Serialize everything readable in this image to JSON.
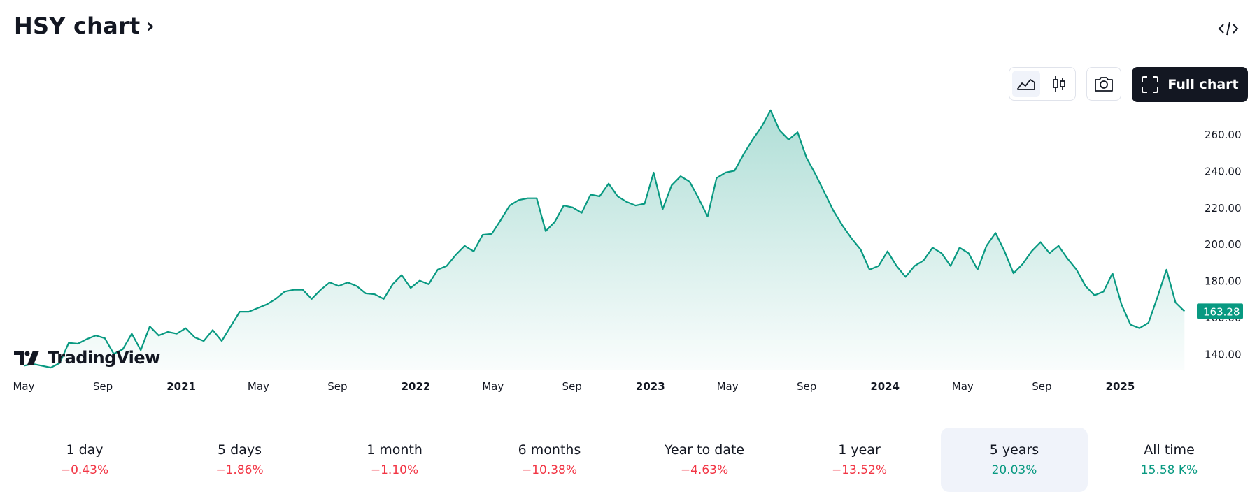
{
  "header": {
    "title": "HSY chart",
    "chevron": "›",
    "embed_icon": "code-icon"
  },
  "toolbar": {
    "line_icon": "area-chart-icon",
    "candles_icon": "candlestick-icon",
    "camera_icon": "camera-icon",
    "full_chart_label": "Full chart",
    "full_chart_icon": "fullscreen-icon"
  },
  "logo": {
    "text": "TradingView"
  },
  "colors": {
    "line": "#089981",
    "negative": "#f23645",
    "positive": "#089981",
    "price_tag": "#089981"
  },
  "chart_data": {
    "type": "area",
    "ticker": "HSY",
    "last_price": 163.28,
    "last_price_label": "163.28",
    "ylim": [
      131,
      276
    ],
    "yticks": [
      {
        "value": 140,
        "label": "140.00"
      },
      {
        "value": 160,
        "label": "160.00"
      },
      {
        "value": 180,
        "label": "180.00"
      },
      {
        "value": 200,
        "label": "200.00"
      },
      {
        "value": 220,
        "label": "220.00"
      },
      {
        "value": 240,
        "label": "240.00"
      },
      {
        "value": 260,
        "label": "260.00"
      }
    ],
    "xlim": [
      "2020-05-01",
      "2025-04-15"
    ],
    "xticks": [
      {
        "date": "2020-05-01",
        "label": "May",
        "bold": false
      },
      {
        "date": "2020-09-01",
        "label": "Sep",
        "bold": false
      },
      {
        "date": "2021-01-01",
        "label": "2021",
        "bold": true
      },
      {
        "date": "2021-05-01",
        "label": "May",
        "bold": false
      },
      {
        "date": "2021-09-01",
        "label": "Sep",
        "bold": false
      },
      {
        "date": "2022-01-01",
        "label": "2022",
        "bold": true
      },
      {
        "date": "2022-05-01",
        "label": "May",
        "bold": false
      },
      {
        "date": "2022-09-01",
        "label": "Sep",
        "bold": false
      },
      {
        "date": "2023-01-01",
        "label": "2023",
        "bold": true
      },
      {
        "date": "2023-05-01",
        "label": "May",
        "bold": false
      },
      {
        "date": "2023-09-01",
        "label": "Sep",
        "bold": false
      },
      {
        "date": "2024-01-01",
        "label": "2024",
        "bold": true
      },
      {
        "date": "2024-05-01",
        "label": "May",
        "bold": false
      },
      {
        "date": "2024-09-01",
        "label": "Sep",
        "bold": false
      },
      {
        "date": "2025-01-01",
        "label": "2025",
        "bold": true
      }
    ],
    "series": [
      {
        "points": [
          [
            "2020-05-01",
            133.5
          ],
          [
            "2020-05-15",
            134.5
          ],
          [
            "2020-05-29",
            133.5
          ],
          [
            "2020-06-12",
            132.5
          ],
          [
            "2020-06-26",
            135
          ],
          [
            "2020-07-10",
            146
          ],
          [
            "2020-07-24",
            145.5
          ],
          [
            "2020-08-07",
            148
          ],
          [
            "2020-08-21",
            150
          ],
          [
            "2020-09-04",
            148.5
          ],
          [
            "2020-09-18",
            140
          ],
          [
            "2020-10-02",
            142.5
          ],
          [
            "2020-10-16",
            151
          ],
          [
            "2020-10-30",
            142
          ],
          [
            "2020-11-13",
            155
          ],
          [
            "2020-11-27",
            150
          ],
          [
            "2020-12-11",
            152
          ],
          [
            "2020-12-25",
            151
          ],
          [
            "2021-01-08",
            154
          ],
          [
            "2021-01-22",
            149
          ],
          [
            "2021-02-05",
            147
          ],
          [
            "2021-02-19",
            153
          ],
          [
            "2021-03-05",
            147
          ],
          [
            "2021-03-19",
            155
          ],
          [
            "2021-04-02",
            163
          ],
          [
            "2021-04-16",
            163
          ],
          [
            "2021-04-30",
            165
          ],
          [
            "2021-05-14",
            167
          ],
          [
            "2021-05-28",
            170
          ],
          [
            "2021-06-11",
            174
          ],
          [
            "2021-06-25",
            175
          ],
          [
            "2021-07-09",
            175
          ],
          [
            "2021-07-23",
            170
          ],
          [
            "2021-08-06",
            175
          ],
          [
            "2021-08-20",
            179
          ],
          [
            "2021-09-03",
            177
          ],
          [
            "2021-09-17",
            179
          ],
          [
            "2021-10-01",
            177
          ],
          [
            "2021-10-15",
            173
          ],
          [
            "2021-10-29",
            172.5
          ],
          [
            "2021-11-12",
            170
          ],
          [
            "2021-11-26",
            178
          ],
          [
            "2021-12-10",
            183
          ],
          [
            "2021-12-24",
            176
          ],
          [
            "2022-01-07",
            180
          ],
          [
            "2022-01-21",
            178
          ],
          [
            "2022-02-04",
            186
          ],
          [
            "2022-02-18",
            188
          ],
          [
            "2022-03-04",
            194
          ],
          [
            "2022-03-18",
            199
          ],
          [
            "2022-04-01",
            196
          ],
          [
            "2022-04-15",
            205
          ],
          [
            "2022-04-29",
            205.5
          ],
          [
            "2022-05-13",
            213
          ],
          [
            "2022-05-27",
            221
          ],
          [
            "2022-06-10",
            224
          ],
          [
            "2022-06-24",
            225
          ],
          [
            "2022-07-08",
            225
          ],
          [
            "2022-07-22",
            207
          ],
          [
            "2022-08-05",
            212
          ],
          [
            "2022-08-19",
            221
          ],
          [
            "2022-09-02",
            220
          ],
          [
            "2022-09-16",
            217
          ],
          [
            "2022-09-30",
            227
          ],
          [
            "2022-10-14",
            226
          ],
          [
            "2022-10-28",
            233
          ],
          [
            "2022-11-11",
            226
          ],
          [
            "2022-11-25",
            223
          ],
          [
            "2022-12-09",
            221
          ],
          [
            "2022-12-23",
            222
          ],
          [
            "2023-01-06",
            239
          ],
          [
            "2023-01-20",
            219
          ],
          [
            "2023-02-03",
            232
          ],
          [
            "2023-02-17",
            237
          ],
          [
            "2023-03-03",
            234
          ],
          [
            "2023-03-17",
            225
          ],
          [
            "2023-03-31",
            215
          ],
          [
            "2023-04-14",
            236
          ],
          [
            "2023-04-28",
            239
          ],
          [
            "2023-05-12",
            240
          ],
          [
            "2023-05-26",
            249
          ],
          [
            "2023-06-09",
            257
          ],
          [
            "2023-06-23",
            264
          ],
          [
            "2023-07-07",
            273
          ],
          [
            "2023-07-21",
            262
          ],
          [
            "2023-08-04",
            257
          ],
          [
            "2023-08-18",
            261
          ],
          [
            "2023-09-01",
            247
          ],
          [
            "2023-09-15",
            238
          ],
          [
            "2023-09-29",
            228
          ],
          [
            "2023-10-13",
            218
          ],
          [
            "2023-10-27",
            210
          ],
          [
            "2023-11-10",
            203
          ],
          [
            "2023-11-24",
            197
          ],
          [
            "2023-12-08",
            186
          ],
          [
            "2023-12-22",
            188
          ],
          [
            "2024-01-05",
            196
          ],
          [
            "2024-01-19",
            188
          ],
          [
            "2024-02-02",
            182
          ],
          [
            "2024-02-16",
            188
          ],
          [
            "2024-03-01",
            191
          ],
          [
            "2024-03-15",
            198
          ],
          [
            "2024-03-29",
            195
          ],
          [
            "2024-04-12",
            188
          ],
          [
            "2024-04-26",
            198
          ],
          [
            "2024-05-10",
            195
          ],
          [
            "2024-05-24",
            186
          ],
          [
            "2024-06-07",
            199
          ],
          [
            "2024-06-21",
            206
          ],
          [
            "2024-07-05",
            196
          ],
          [
            "2024-07-19",
            184
          ],
          [
            "2024-08-02",
            189
          ],
          [
            "2024-08-16",
            196
          ],
          [
            "2024-08-30",
            201
          ],
          [
            "2024-09-13",
            195
          ],
          [
            "2024-09-27",
            199
          ],
          [
            "2024-10-11",
            192
          ],
          [
            "2024-10-25",
            186
          ],
          [
            "2024-11-08",
            177
          ],
          [
            "2024-11-22",
            172
          ],
          [
            "2024-12-06",
            174
          ],
          [
            "2024-12-20",
            184
          ],
          [
            "2025-01-03",
            167
          ],
          [
            "2025-01-17",
            156
          ],
          [
            "2025-01-31",
            154
          ],
          [
            "2025-02-14",
            157
          ],
          [
            "2025-02-28",
            171
          ],
          [
            "2025-03-14",
            186
          ],
          [
            "2025-03-28",
            168
          ],
          [
            "2025-04-11",
            163.28
          ]
        ]
      }
    ]
  },
  "ranges": [
    {
      "label": "1 day",
      "value": "−0.43%",
      "sign": "neg"
    },
    {
      "label": "5 days",
      "value": "−1.86%",
      "sign": "neg"
    },
    {
      "label": "1 month",
      "value": "−1.10%",
      "sign": "neg"
    },
    {
      "label": "6 months",
      "value": "−10.38%",
      "sign": "neg"
    },
    {
      "label": "Year to date",
      "value": "−4.63%",
      "sign": "neg"
    },
    {
      "label": "1 year",
      "value": "−13.52%",
      "sign": "neg"
    },
    {
      "label": "5 years",
      "value": "20.03%",
      "sign": "pos",
      "active": true
    },
    {
      "label": "All time",
      "value": "15.58 K%",
      "sign": "pos"
    }
  ]
}
